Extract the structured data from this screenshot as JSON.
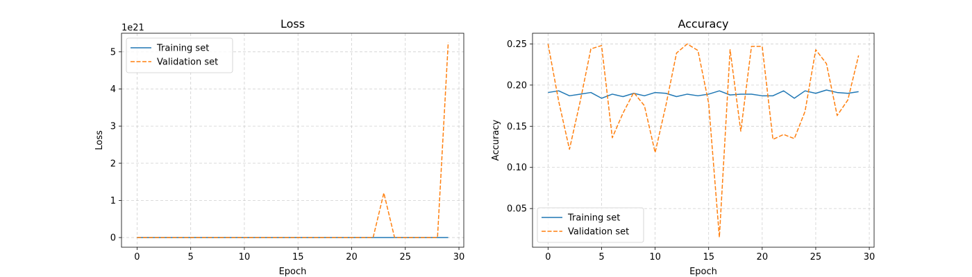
{
  "chart_data": [
    {
      "type": "line",
      "title": "Loss",
      "xlabel": "Epoch",
      "ylabel": "Loss",
      "offset_text": "1e21",
      "grid": true,
      "legend_position": "top-left",
      "xlim": [
        -1.45,
        30.45
      ],
      "ylim": [
        -0.26,
        5.5
      ],
      "xticks": [
        0,
        5,
        10,
        15,
        20,
        25,
        30
      ],
      "yticks": [
        0,
        1,
        2,
        3,
        4,
        5
      ],
      "x": [
        0,
        1,
        2,
        3,
        4,
        5,
        6,
        7,
        8,
        9,
        10,
        11,
        12,
        13,
        14,
        15,
        16,
        17,
        18,
        19,
        20,
        21,
        22,
        23,
        24,
        25,
        26,
        27,
        28,
        29
      ],
      "series": [
        {
          "name": "Training set",
          "color": "#1f77b4",
          "style": "solid",
          "values": [
            0,
            0,
            0,
            0,
            0,
            0,
            0,
            0,
            0,
            0,
            0,
            0,
            0,
            0,
            0,
            0,
            0,
            0,
            0,
            0,
            0,
            0,
            0,
            0,
            0,
            0,
            0,
            0,
            0,
            0
          ]
        },
        {
          "name": "Validation set",
          "color": "#ff7f0e",
          "style": "dashed",
          "values": [
            0,
            0,
            0,
            0,
            0,
            0,
            0,
            0,
            0,
            0,
            0,
            0,
            0,
            0,
            0,
            0,
            0,
            0,
            0,
            0,
            0,
            0,
            0,
            1.2,
            0,
            0,
            0,
            0,
            0,
            5.25
          ]
        }
      ]
    },
    {
      "type": "line",
      "title": "Accuracy",
      "xlabel": "Epoch",
      "ylabel": "Accuracy",
      "grid": true,
      "legend_position": "bottom-left",
      "xlim": [
        -1.45,
        30.45
      ],
      "ylim": [
        0.003,
        0.263
      ],
      "xticks": [
        0,
        5,
        10,
        15,
        20,
        25,
        30
      ],
      "yticks": [
        0.05,
        0.1,
        0.15,
        0.2,
        0.25
      ],
      "x": [
        0,
        1,
        2,
        3,
        4,
        5,
        6,
        7,
        8,
        9,
        10,
        11,
        12,
        13,
        14,
        15,
        16,
        17,
        18,
        19,
        20,
        21,
        22,
        23,
        24,
        25,
        26,
        27,
        28,
        29
      ],
      "series": [
        {
          "name": "Training set",
          "color": "#1f77b4",
          "style": "solid",
          "values": [
            0.191,
            0.193,
            0.187,
            0.189,
            0.191,
            0.184,
            0.189,
            0.186,
            0.19,
            0.187,
            0.191,
            0.19,
            0.186,
            0.189,
            0.187,
            0.189,
            0.193,
            0.188,
            0.189,
            0.189,
            0.187,
            0.187,
            0.193,
            0.184,
            0.193,
            0.19,
            0.194,
            0.191,
            0.19,
            0.192
          ]
        },
        {
          "name": "Validation set",
          "color": "#ff7f0e",
          "style": "dashed",
          "values": [
            0.25,
            0.18,
            0.122,
            0.18,
            0.244,
            0.248,
            0.136,
            0.166,
            0.191,
            0.175,
            0.118,
            0.175,
            0.239,
            0.25,
            0.242,
            0.178,
            0.015,
            0.243,
            0.144,
            0.247,
            0.247,
            0.134,
            0.14,
            0.135,
            0.168,
            0.243,
            0.226,
            0.163,
            0.182,
            0.236
          ]
        }
      ]
    }
  ]
}
